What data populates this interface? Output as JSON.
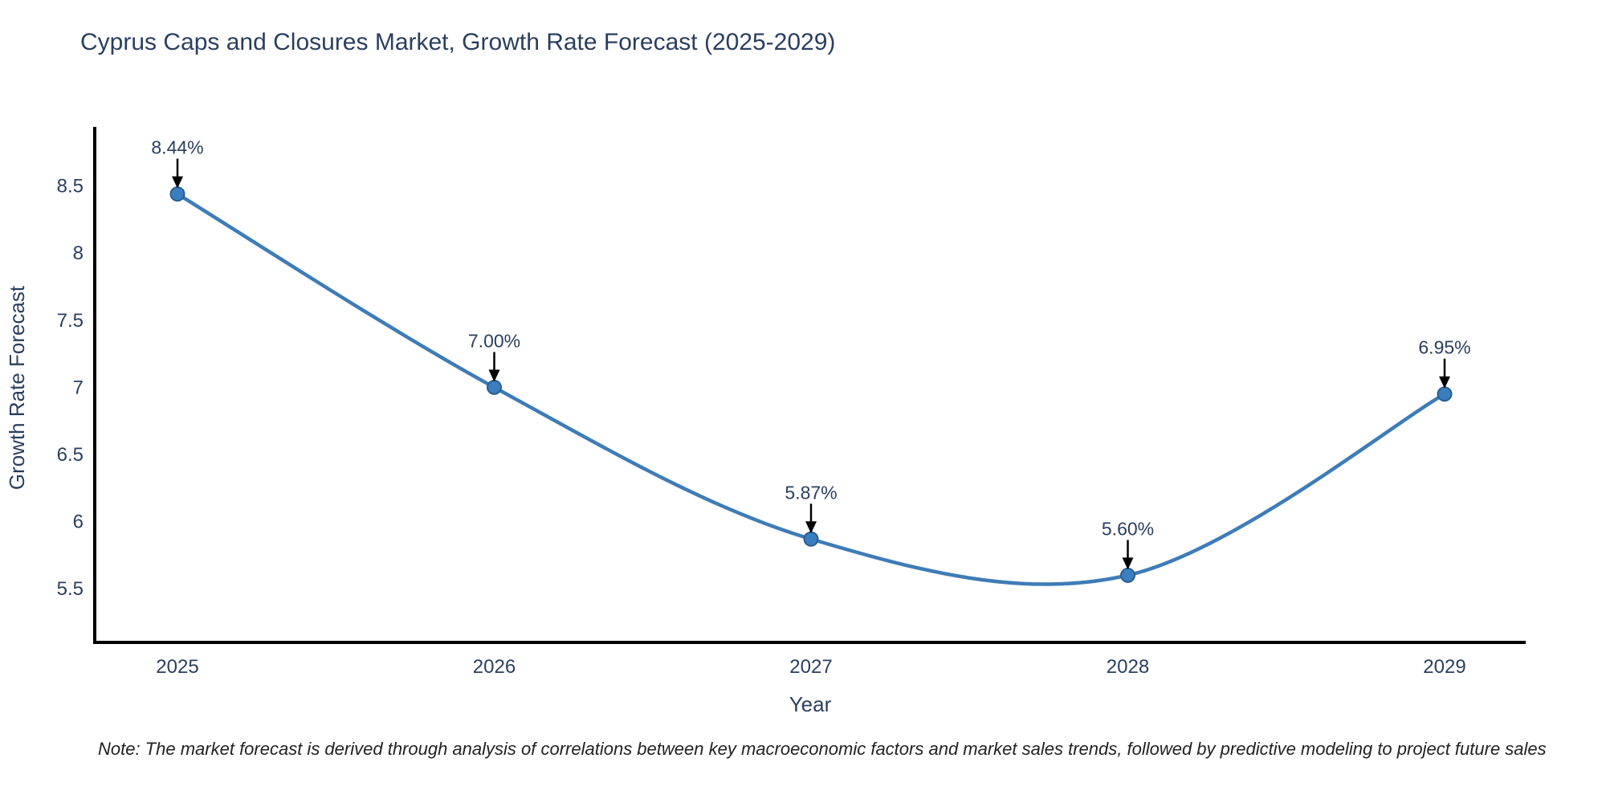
{
  "note": "Note: The market forecast is derived through analysis of correlations between key macroeconomic factors and market sales trends, followed by predictive modeling to project future sales",
  "chart_data": {
    "type": "line",
    "title": "Cyprus Caps and Closures Market, Growth Rate Forecast (2025-2029)",
    "xlabel": "Year",
    "ylabel": "Growth Rate Forecast",
    "categories": [
      "2025",
      "2026",
      "2027",
      "2028",
      "2029"
    ],
    "series": [
      {
        "name": "Growth Rate Forecast",
        "values": [
          8.44,
          7.0,
          5.87,
          5.6,
          6.95
        ]
      }
    ],
    "point_labels": [
      "8.44%",
      "7.00%",
      "5.87%",
      "5.60%",
      "6.95%"
    ],
    "ytick_labels": [
      "5.5",
      "6",
      "6.5",
      "7",
      "7.5",
      "8",
      "8.5"
    ],
    "ytick_values": [
      5.5,
      6,
      6.5,
      7,
      7.5,
      8,
      8.5
    ],
    "ylim": [
      5.1,
      8.94
    ],
    "line_shape": "spline",
    "grid": false,
    "legend_position": "none",
    "colors": {
      "line": "#3e7cb7",
      "marker": "#3a7ebf",
      "marker_edge": "#2a5f8f",
      "axis": "#000000",
      "text": "#2a3f5f",
      "annotation_text": "#2a3f5f",
      "annotation_arrow": "#000000",
      "note_text": "#222222",
      "background": "#ffffff"
    }
  }
}
